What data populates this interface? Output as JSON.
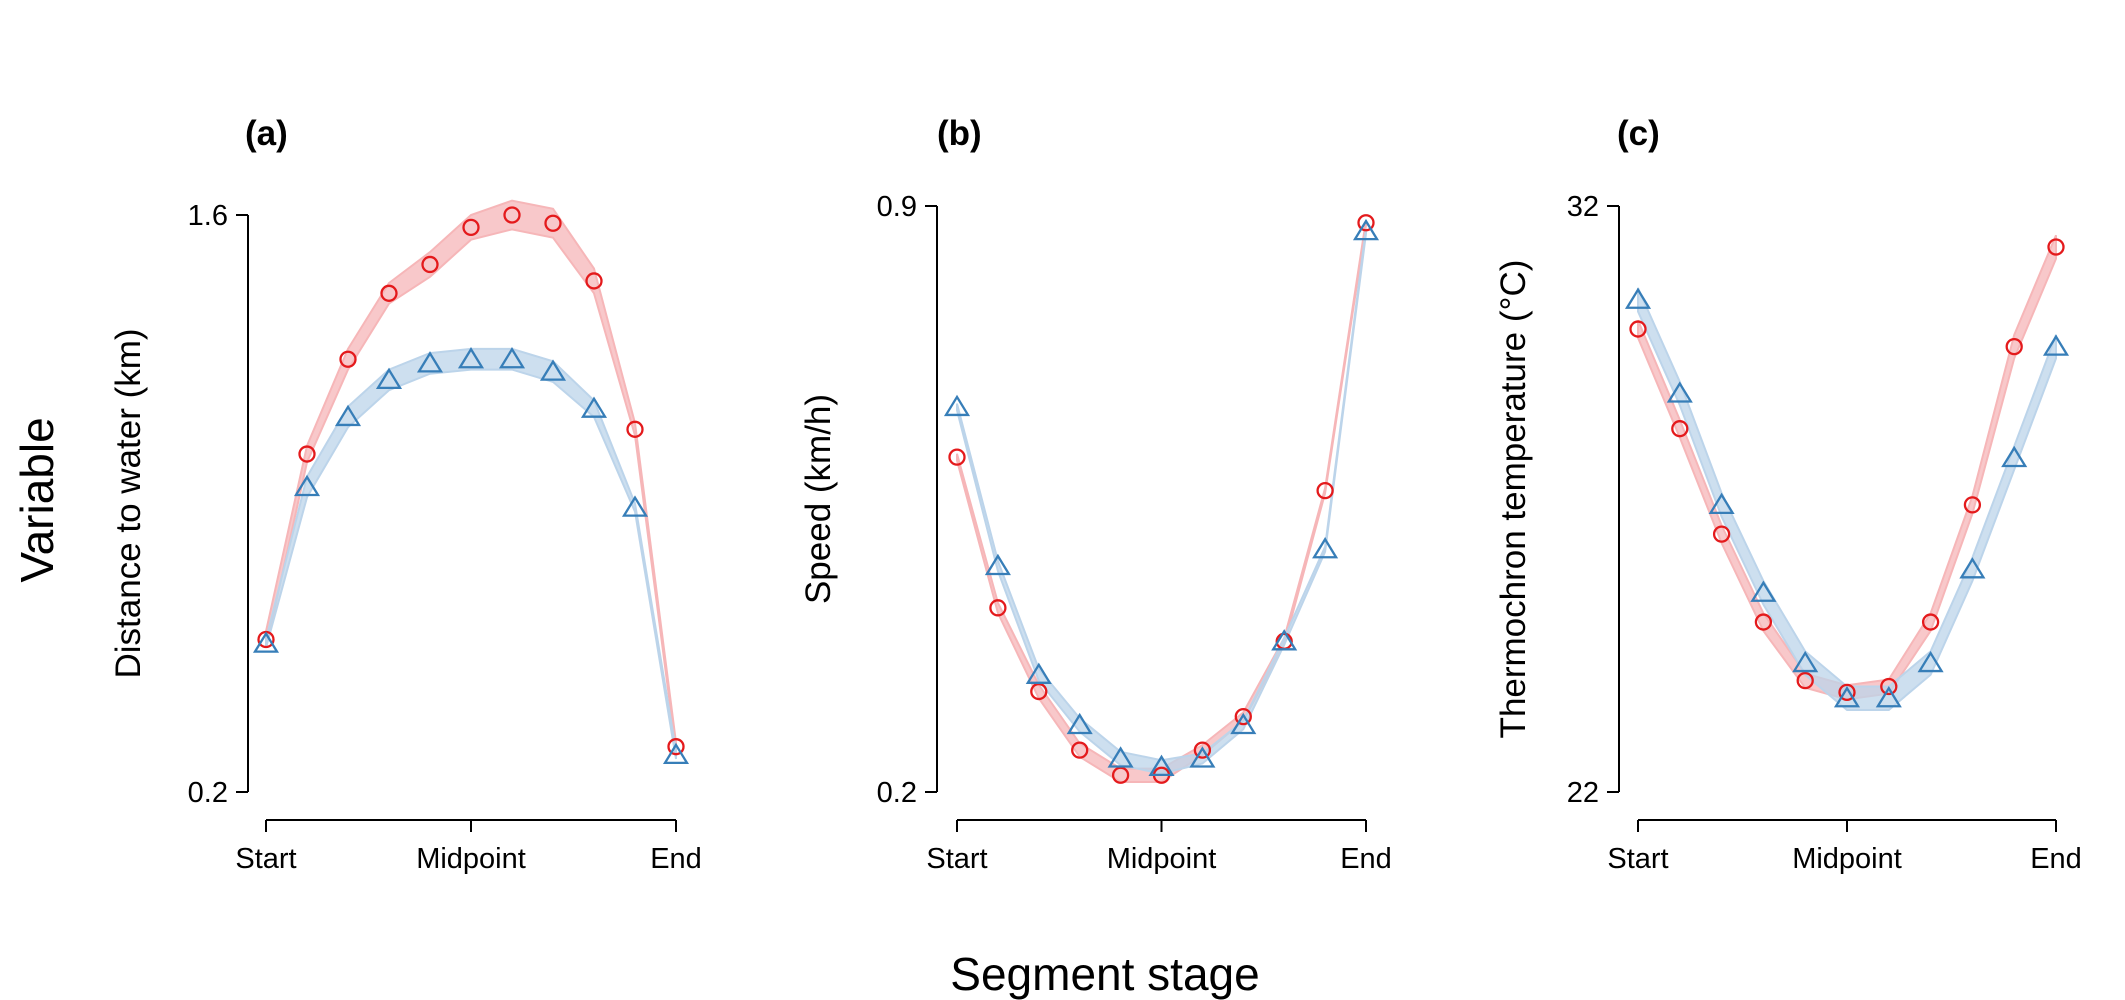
{
  "figure": {
    "ylabel": "Variable",
    "xlabel": "Segment stage"
  },
  "colors": {
    "series_a": "#e41a1c",
    "series_b": "#377eb8",
    "band_a": "#f6b6b8",
    "band_b": "#bcd4ea"
  },
  "chart_data": [
    {
      "type": "line",
      "panel_label": "(a)",
      "ylabel": "Distance to water (km)",
      "ylim": [
        0.2,
        1.6
      ],
      "yticks": [
        0.2,
        1.6
      ],
      "ytick_labels": [
        "0.2",
        "1.6"
      ],
      "xlim": [
        1,
        11
      ],
      "xticks": [
        1,
        6,
        11
      ],
      "xtick_labels": [
        "Start",
        "Midpoint",
        "End"
      ],
      "x": [
        1,
        2,
        3,
        4,
        5,
        6,
        7,
        8,
        9,
        10,
        11
      ],
      "series": [
        {
          "marker": "circle",
          "color": "#e41a1c",
          "values": [
            0.57,
            1.02,
            1.25,
            1.41,
            1.48,
            1.57,
            1.6,
            1.58,
            1.44,
            1.08,
            0.31
          ],
          "band": [
            0.02,
            0.02,
            0.025,
            0.025,
            0.03,
            0.03,
            0.035,
            0.035,
            0.03,
            0.015,
            0.01
          ]
        },
        {
          "marker": "triangle",
          "color": "#377eb8",
          "values": [
            0.56,
            0.94,
            1.11,
            1.2,
            1.24,
            1.25,
            1.25,
            1.22,
            1.13,
            0.89,
            0.29
          ],
          "band": [
            0.01,
            0.025,
            0.025,
            0.025,
            0.025,
            0.025,
            0.025,
            0.025,
            0.02,
            0.01,
            0.01
          ]
        }
      ]
    },
    {
      "type": "line",
      "panel_label": "(b)",
      "ylabel": "Speed (km/h)",
      "ylim": [
        0.2,
        0.9
      ],
      "yticks": [
        0.2,
        0.9
      ],
      "ytick_labels": [
        "0.2",
        "0.9"
      ],
      "xlim": [
        1,
        11
      ],
      "xticks": [
        1,
        6,
        11
      ],
      "xtick_labels": [
        "Start",
        "Midpoint",
        "End"
      ],
      "x": [
        1,
        2,
        3,
        4,
        5,
        6,
        7,
        8,
        9,
        10,
        11
      ],
      "series": [
        {
          "marker": "circle",
          "color": "#e41a1c",
          "values": [
            0.6,
            0.42,
            0.32,
            0.25,
            0.22,
            0.22,
            0.25,
            0.29,
            0.38,
            0.56,
            0.88
          ],
          "band": [
            0.004,
            0.006,
            0.008,
            0.008,
            0.008,
            0.008,
            0.006,
            0.005,
            0.004,
            0.003,
            0.003
          ]
        },
        {
          "marker": "triangle",
          "color": "#377eb8",
          "values": [
            0.66,
            0.47,
            0.34,
            0.28,
            0.24,
            0.23,
            0.24,
            0.28,
            0.38,
            0.49,
            0.87
          ],
          "band": [
            0.004,
            0.006,
            0.007,
            0.008,
            0.008,
            0.008,
            0.006,
            0.005,
            0.004,
            0.003,
            0.003
          ]
        }
      ]
    },
    {
      "type": "line",
      "panel_label": "(c)",
      "ylabel": "Thermochron temperature (°C)",
      "ylim": [
        22,
        32
      ],
      "yticks": [
        22,
        32
      ],
      "ytick_labels": [
        "22",
        "32"
      ],
      "xlim": [
        1,
        11
      ],
      "xticks": [
        1,
        6,
        11
      ],
      "xtick_labels": [
        "Start",
        "Midpoint",
        "End"
      ],
      "x": [
        1,
        2,
        3,
        4,
        5,
        6,
        7,
        8,
        9,
        10,
        11
      ],
      "series": [
        {
          "marker": "circle",
          "color": "#e41a1c",
          "values": [
            29.9,
            28.2,
            26.4,
            24.9,
            23.9,
            23.7,
            23.8,
            24.9,
            26.9,
            29.6,
            31.3
          ],
          "band": [
            0.15,
            0.15,
            0.15,
            0.15,
            0.12,
            0.12,
            0.12,
            0.15,
            0.15,
            0.2,
            0.2
          ]
        },
        {
          "marker": "triangle",
          "color": "#377eb8",
          "values": [
            30.4,
            28.8,
            26.9,
            25.4,
            24.2,
            23.6,
            23.6,
            24.2,
            25.8,
            27.7,
            29.6
          ],
          "band": [
            0.2,
            0.2,
            0.2,
            0.2,
            0.2,
            0.2,
            0.2,
            0.2,
            0.2,
            0.2,
            0.2
          ]
        }
      ]
    }
  ]
}
